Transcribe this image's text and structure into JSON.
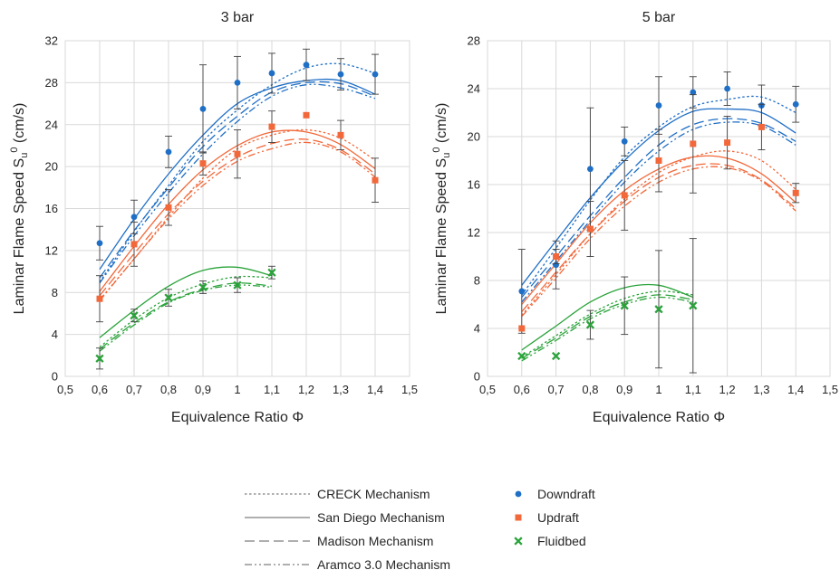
{
  "colors": {
    "downdraft": "#1f6fc6",
    "updraft": "#f2683a",
    "fluidbed": "#2aa33a",
    "grid": "#d9d9d9",
    "errorbar": "#404040",
    "legend_line": "#7f7f7f"
  },
  "legend": {
    "mechanisms": [
      {
        "label": "CRECK Mechanism",
        "style": "dotted"
      },
      {
        "label": "San Diego Mechanism",
        "style": "solid"
      },
      {
        "label": "Madison Mechanism",
        "style": "longdash"
      },
      {
        "label": "Aramco 3.0 Mechanism",
        "style": "dashdotdot"
      }
    ],
    "experiments": [
      {
        "label": "Downdraft",
        "marker": "circle",
        "color_key": "downdraft"
      },
      {
        "label": "Updraft",
        "marker": "square",
        "color_key": "updraft"
      },
      {
        "label": "Fluidbed",
        "marker": "cross",
        "color_key": "fluidbed"
      }
    ]
  },
  "chart_data": [
    {
      "type": "scatter",
      "title": "3 bar",
      "xlabel": "Equivalence Ratio Φ",
      "ylabel": "Laminar Flame Speed S",
      "ylabel_sub": "u",
      "ylabel_sup": "0",
      "ylabel_unit": " (cm/s)",
      "xlim": [
        0.5,
        1.5
      ],
      "ylim": [
        0,
        32
      ],
      "x_ticks": [
        "0,5",
        "0,6",
        "0,7",
        "0,8",
        "0,9",
        "1",
        "1,1",
        "1,2",
        "1,3",
        "1,4",
        "1,5"
      ],
      "y_ticks": [
        "0",
        "4",
        "8",
        "12",
        "16",
        "20",
        "24",
        "28",
        "32"
      ],
      "grid": true,
      "experiments": [
        {
          "name": "Downdraft",
          "x": [
            0.6,
            0.7,
            0.8,
            0.9,
            1.0,
            1.1,
            1.2,
            1.3,
            1.4
          ],
          "y": [
            12.7,
            15.2,
            21.4,
            25.5,
            28.0,
            28.9,
            29.7,
            28.8,
            28.8
          ],
          "err": [
            1.6,
            1.6,
            1.5,
            4.2,
            2.5,
            1.9,
            1.5,
            1.5,
            1.9
          ]
        },
        {
          "name": "Updraft",
          "x": [
            0.6,
            0.7,
            0.8,
            0.9,
            1.0,
            1.1,
            1.2,
            1.3,
            1.4
          ],
          "y": [
            7.4,
            12.6,
            16.1,
            20.3,
            21.2,
            23.8,
            24.9,
            23.0,
            18.7
          ],
          "err": [
            2.2,
            2.1,
            1.7,
            1.1,
            2.3,
            1.5,
            0,
            1.4,
            2.1
          ]
        },
        {
          "name": "Fluidbed",
          "x": [
            0.6,
            0.7,
            0.8,
            0.9,
            1.0,
            1.1
          ],
          "y": [
            1.7,
            5.8,
            7.5,
            8.5,
            8.7,
            9.9
          ],
          "err": [
            1.0,
            0.6,
            0.8,
            0.6,
            0.7,
            0.6
          ]
        }
      ],
      "models": [
        {
          "group": "Downdraft",
          "mechanism": "CRECK Mechanism",
          "x": [
            0.6,
            0.7,
            0.8,
            0.9,
            1.0,
            1.1,
            1.2,
            1.3,
            1.4
          ],
          "y": [
            9.0,
            13.8,
            18.2,
            22.4,
            25.4,
            27.8,
            29.4,
            29.8,
            28.9
          ]
        },
        {
          "group": "Downdraft",
          "mechanism": "San Diego Mechanism",
          "x": [
            0.6,
            0.7,
            0.8,
            0.9,
            1.0,
            1.1,
            1.2,
            1.3,
            1.4
          ],
          "y": [
            10.2,
            15.0,
            19.3,
            23.0,
            26.0,
            27.5,
            28.2,
            28.2,
            26.9
          ]
        },
        {
          "group": "Downdraft",
          "mechanism": "Madison Mechanism",
          "x": [
            0.6,
            0.7,
            0.8,
            0.9,
            1.0,
            1.1,
            1.2,
            1.3,
            1.4
          ],
          "y": [
            9.4,
            13.9,
            18.0,
            21.9,
            24.8,
            27.1,
            28.0,
            27.9,
            26.7
          ]
        },
        {
          "group": "Downdraft",
          "mechanism": "Aramco 3.0 Mechanism",
          "x": [
            0.6,
            0.7,
            0.8,
            0.9,
            1.0,
            1.1,
            1.2,
            1.3,
            1.4
          ],
          "y": [
            8.9,
            13.4,
            17.5,
            21.2,
            24.3,
            26.7,
            27.8,
            27.5,
            26.5
          ]
        },
        {
          "group": "Updraft",
          "mechanism": "CRECK Mechanism",
          "x": [
            0.6,
            0.7,
            0.8,
            0.9,
            1.0,
            1.1,
            1.2,
            1.3,
            1.4
          ],
          "y": [
            7.3,
            11.2,
            15.2,
            18.9,
            21.7,
            23.0,
            23.5,
            22.7,
            20.6
          ]
        },
        {
          "group": "Updraft",
          "mechanism": "San Diego Mechanism",
          "x": [
            0.6,
            0.7,
            0.8,
            0.9,
            1.0,
            1.1,
            1.2,
            1.3,
            1.4
          ],
          "y": [
            8.1,
            12.4,
            16.4,
            19.7,
            22.0,
            23.3,
            23.3,
            22.1,
            19.8
          ]
        },
        {
          "group": "Updraft",
          "mechanism": "Madison Mechanism",
          "x": [
            0.6,
            0.7,
            0.8,
            0.9,
            1.0,
            1.1,
            1.2,
            1.3,
            1.4
          ],
          "y": [
            7.7,
            11.7,
            15.5,
            18.6,
            20.9,
            22.2,
            22.6,
            21.6,
            19.3
          ]
        },
        {
          "group": "Updraft",
          "mechanism": "Aramco 3.0 Mechanism",
          "x": [
            0.6,
            0.7,
            0.8,
            0.9,
            1.0,
            1.1,
            1.2,
            1.3,
            1.4
          ],
          "y": [
            7.2,
            11.2,
            15.0,
            18.2,
            20.5,
            21.7,
            22.3,
            21.4,
            19.0
          ]
        },
        {
          "group": "Fluidbed",
          "mechanism": "CRECK Mechanism",
          "x": [
            0.6,
            0.7,
            0.8,
            0.9,
            1.0,
            1.1
          ],
          "y": [
            2.8,
            5.4,
            7.5,
            8.8,
            9.5,
            9.4
          ]
        },
        {
          "group": "Fluidbed",
          "mechanism": "San Diego Mechanism",
          "x": [
            0.6,
            0.7,
            0.8,
            0.9,
            1.0,
            1.1
          ],
          "y": [
            3.7,
            6.3,
            8.6,
            10.1,
            10.4,
            9.6
          ]
        },
        {
          "group": "Fluidbed",
          "mechanism": "Madison Mechanism",
          "x": [
            0.6,
            0.7,
            0.8,
            0.9,
            1.0,
            1.1
          ],
          "y": [
            2.6,
            5.1,
            7.1,
            8.3,
            8.9,
            8.6
          ]
        },
        {
          "group": "Fluidbed",
          "mechanism": "Aramco 3.0 Mechanism",
          "x": [
            0.6,
            0.7,
            0.8,
            0.9,
            1.0,
            1.1
          ],
          "y": [
            2.4,
            4.9,
            7.0,
            8.2,
            8.7,
            8.5
          ]
        }
      ]
    },
    {
      "type": "scatter",
      "title": "5 bar",
      "xlabel": "Equivalence Ratio Φ",
      "ylabel": "Laminar Flame Speed S",
      "ylabel_sub": "u",
      "ylabel_sup": "0",
      "ylabel_unit": " (cm/s)",
      "xlim": [
        0.5,
        1.5
      ],
      "ylim": [
        0,
        28
      ],
      "x_ticks": [
        "0,5",
        "0,6",
        "0,7",
        "0,8",
        "0,9",
        "1",
        "1,1",
        "1,2",
        "1,3",
        "1,4",
        "1,5"
      ],
      "y_ticks": [
        "0",
        "4",
        "8",
        "12",
        "16",
        "20",
        "24",
        "28"
      ],
      "grid": true,
      "experiments": [
        {
          "name": "Downdraft",
          "x": [
            0.6,
            0.7,
            0.8,
            0.9,
            1.0,
            1.1,
            1.2,
            1.3,
            1.4
          ],
          "y": [
            7.1,
            9.3,
            17.3,
            19.6,
            22.6,
            23.7,
            24.0,
            22.6,
            22.7
          ],
          "err": [
            3.5,
            2.0,
            5.1,
            1.2,
            2.4,
            1.3,
            1.4,
            1.7,
            1.5
          ]
        },
        {
          "group": "",
          "name": "Updraft",
          "x": [
            0.6,
            0.7,
            0.8,
            0.9,
            1.0,
            1.1,
            1.2,
            1.3,
            1.4
          ],
          "y": [
            4.0,
            10.0,
            12.3,
            15.1,
            18.0,
            19.4,
            19.5,
            20.8,
            15.3
          ],
          "err": [
            0,
            0.6,
            2.3,
            2.9,
            2.6,
            4.1,
            2.2,
            1.9,
            0.8
          ]
        },
        {
          "name": "Fluidbed",
          "x": [
            0.6,
            0.7,
            0.8,
            0.9,
            1.0,
            1.1
          ],
          "y": [
            1.7,
            1.7,
            4.3,
            5.9,
            5.6,
            5.9
          ],
          "err": [
            0,
            0,
            1.2,
            2.4,
            4.9,
            5.6
          ]
        }
      ],
      "models": [
        {
          "group": "Downdraft",
          "mechanism": "CRECK Mechanism",
          "x": [
            0.6,
            0.7,
            0.8,
            0.9,
            1.0,
            1.1,
            1.2,
            1.3,
            1.4
          ],
          "y": [
            6.8,
            10.7,
            14.7,
            18.3,
            20.8,
            22.5,
            23.1,
            23.3,
            22.0
          ]
        },
        {
          "group": "Downdraft",
          "mechanism": "San Diego Mechanism",
          "x": [
            0.6,
            0.7,
            0.8,
            0.9,
            1.0,
            1.1,
            1.2,
            1.3,
            1.4
          ],
          "y": [
            7.6,
            11.3,
            14.9,
            18.0,
            20.5,
            22.1,
            22.3,
            22.0,
            20.3
          ]
        },
        {
          "group": "Downdraft",
          "mechanism": "Madison Mechanism",
          "x": [
            0.6,
            0.7,
            0.8,
            0.9,
            1.0,
            1.1,
            1.2,
            1.3,
            1.4
          ],
          "y": [
            6.6,
            10.0,
            13.4,
            16.6,
            19.3,
            21.0,
            21.5,
            21.1,
            19.6
          ]
        },
        {
          "group": "Downdraft",
          "mechanism": "Aramco 3.0 Mechanism",
          "x": [
            0.6,
            0.7,
            0.8,
            0.9,
            1.0,
            1.1,
            1.2,
            1.3,
            1.4
          ],
          "y": [
            6.2,
            9.6,
            13.0,
            16.2,
            18.8,
            20.6,
            21.2,
            20.9,
            19.3
          ]
        },
        {
          "group": "Updraft",
          "mechanism": "CRECK Mechanism",
          "x": [
            0.6,
            0.7,
            0.8,
            0.9,
            1.0,
            1.1,
            1.2,
            1.3,
            1.4
          ],
          "y": [
            5.1,
            8.5,
            11.9,
            14.8,
            17.0,
            18.3,
            18.8,
            18.0,
            15.6
          ]
        },
        {
          "group": "Updraft",
          "mechanism": "San Diego Mechanism",
          "x": [
            0.6,
            0.7,
            0.8,
            0.9,
            1.0,
            1.1,
            1.2,
            1.3,
            1.4
          ],
          "y": [
            6.0,
            9.4,
            12.8,
            15.5,
            17.3,
            18.3,
            18.2,
            16.9,
            14.5
          ]
        },
        {
          "group": "Updraft",
          "mechanism": "Madison Mechanism",
          "x": [
            0.6,
            0.7,
            0.8,
            0.9,
            1.0,
            1.1,
            1.2,
            1.3,
            1.4
          ],
          "y": [
            5.4,
            8.7,
            11.9,
            14.6,
            16.6,
            17.6,
            17.6,
            16.4,
            14.0
          ]
        },
        {
          "group": "Updraft",
          "mechanism": "Aramco 3.0 Mechanism",
          "x": [
            0.6,
            0.7,
            0.8,
            0.9,
            1.0,
            1.1,
            1.2,
            1.3,
            1.4
          ],
          "y": [
            5.0,
            8.2,
            11.5,
            14.2,
            16.2,
            17.3,
            17.4,
            16.3,
            13.8
          ]
        },
        {
          "group": "Fluidbed",
          "mechanism": "CRECK Mechanism",
          "x": [
            0.6,
            0.7,
            0.8,
            0.9,
            1.0,
            1.1
          ],
          "y": [
            1.6,
            3.4,
            5.2,
            6.5,
            7.1,
            6.8
          ]
        },
        {
          "group": "Fluidbed",
          "mechanism": "San Diego Mechanism",
          "x": [
            0.6,
            0.7,
            0.8,
            0.9,
            1.0,
            1.1
          ],
          "y": [
            2.2,
            4.2,
            6.2,
            7.4,
            7.6,
            6.6
          ]
        },
        {
          "group": "Fluidbed",
          "mechanism": "Madison Mechanism",
          "x": [
            0.6,
            0.7,
            0.8,
            0.9,
            1.0,
            1.1
          ],
          "y": [
            1.5,
            3.2,
            5.0,
            6.2,
            6.8,
            6.4
          ]
        },
        {
          "group": "Fluidbed",
          "mechanism": "Aramco 3.0 Mechanism",
          "x": [
            0.6,
            0.7,
            0.8,
            0.9,
            1.0,
            1.1
          ],
          "y": [
            1.3,
            3.0,
            4.8,
            6.0,
            6.6,
            6.2
          ]
        }
      ]
    }
  ]
}
